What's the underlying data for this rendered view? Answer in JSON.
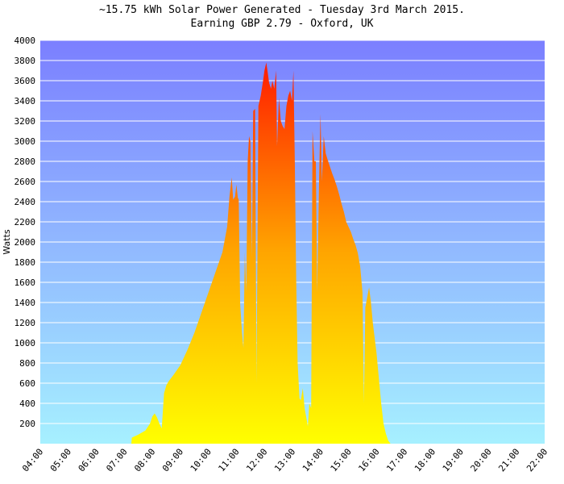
{
  "title": {
    "line1": "~15.75 kWh Solar Power Generated - Tuesday 3rd March 2015.",
    "line2": "Earning GBP 2.79 - Oxford, UK"
  },
  "chart_data": {
    "type": "area",
    "title": "~15.75 kWh Solar Power Generated - Tuesday 3rd March 2015.",
    "subtitle": "Earning GBP 2.79 - Oxford, UK",
    "xlabel": "",
    "ylabel": "Watts",
    "ylim": [
      0,
      4000
    ],
    "xlim": [
      "04:00",
      "22:00"
    ],
    "yticks": [
      200,
      400,
      600,
      800,
      1000,
      1200,
      1400,
      1600,
      1800,
      2000,
      2200,
      2400,
      2600,
      2800,
      3000,
      3200,
      3400,
      3600,
      3800,
      4000
    ],
    "xticks": [
      "04:00",
      "05:00",
      "06:00",
      "07:00",
      "08:00",
      "09:00",
      "10:00",
      "11:00",
      "12:00",
      "13:00",
      "14:00",
      "15:00",
      "16:00",
      "17:00",
      "18:00",
      "19:00",
      "20:00",
      "21:00",
      "22:00"
    ],
    "grid": true,
    "colors": {
      "plot_bg_top": "#7b7fff",
      "plot_bg_bottom": "#a6f0ff",
      "area_low": "#ffff00",
      "area_mid": "#ffa500",
      "area_high": "#ff1a00",
      "gridline": "#ffffff"
    },
    "points": [
      [
        "07:15",
        0
      ],
      [
        "07:16",
        60
      ],
      [
        "07:30",
        90
      ],
      [
        "07:45",
        130
      ],
      [
        "07:55",
        200
      ],
      [
        "08:00",
        270
      ],
      [
        "08:05",
        300
      ],
      [
        "08:10",
        260
      ],
      [
        "08:15",
        200
      ],
      [
        "08:20",
        150
      ],
      [
        "08:25",
        500
      ],
      [
        "08:30",
        580
      ],
      [
        "08:35",
        620
      ],
      [
        "08:45",
        680
      ],
      [
        "09:00",
        780
      ],
      [
        "09:15",
        930
      ],
      [
        "09:30",
        1100
      ],
      [
        "09:45",
        1300
      ],
      [
        "10:00",
        1500
      ],
      [
        "10:15",
        1700
      ],
      [
        "10:30",
        1900
      ],
      [
        "10:40",
        2150
      ],
      [
        "10:45",
        2450
      ],
      [
        "10:50",
        2640
      ],
      [
        "10:53",
        2420
      ],
      [
        "10:57",
        2450
      ],
      [
        "11:00",
        2570
      ],
      [
        "11:03",
        2440
      ],
      [
        "11:05",
        2420
      ],
      [
        "11:08",
        1380
      ],
      [
        "11:12",
        1100
      ],
      [
        "11:15",
        950
      ],
      [
        "11:18",
        1900
      ],
      [
        "11:21",
        1500
      ],
      [
        "11:24",
        2800
      ],
      [
        "11:27",
        3050
      ],
      [
        "11:30",
        3000
      ],
      [
        "11:33",
        1850
      ],
      [
        "11:36",
        3300
      ],
      [
        "11:40",
        3320
      ],
      [
        "11:43",
        600
      ],
      [
        "11:47",
        3350
      ],
      [
        "11:52",
        3450
      ],
      [
        "11:57",
        3600
      ],
      [
        "12:00",
        3700
      ],
      [
        "12:04",
        3780
      ],
      [
        "12:07",
        3680
      ],
      [
        "12:10",
        3580
      ],
      [
        "12:14",
        3520
      ],
      [
        "12:17",
        3600
      ],
      [
        "12:21",
        3520
      ],
      [
        "12:25",
        3700
      ],
      [
        "12:27",
        2950
      ],
      [
        "12:31",
        3430
      ],
      [
        "12:35",
        3200
      ],
      [
        "12:39",
        3150
      ],
      [
        "12:43",
        3120
      ],
      [
        "12:47",
        3350
      ],
      [
        "12:51",
        3450
      ],
      [
        "12:55",
        3500
      ],
      [
        "12:59",
        3400
      ],
      [
        "13:02",
        3700
      ],
      [
        "13:05",
        2800
      ],
      [
        "13:08",
        1650
      ],
      [
        "13:11",
        800
      ],
      [
        "13:15",
        450
      ],
      [
        "13:18",
        430
      ],
      [
        "13:22",
        550
      ],
      [
        "13:26",
        350
      ],
      [
        "13:30",
        250
      ],
      [
        "13:33",
        170
      ],
      [
        "13:36",
        400
      ],
      [
        "13:40",
        350
      ],
      [
        "13:43",
        3100
      ],
      [
        "13:47",
        2800
      ],
      [
        "13:50",
        2800
      ],
      [
        "13:53",
        1500
      ],
      [
        "13:57",
        2600
      ],
      [
        "14:00",
        3270
      ],
      [
        "14:03",
        2600
      ],
      [
        "14:07",
        3050
      ],
      [
        "14:11",
        2880
      ],
      [
        "14:15",
        2820
      ],
      [
        "14:20",
        2750
      ],
      [
        "14:25",
        2680
      ],
      [
        "14:30",
        2620
      ],
      [
        "14:35",
        2550
      ],
      [
        "14:40",
        2470
      ],
      [
        "14:45",
        2380
      ],
      [
        "14:50",
        2300
      ],
      [
        "14:55",
        2200
      ],
      [
        "15:00",
        2150
      ],
      [
        "15:05",
        2100
      ],
      [
        "15:10",
        2030
      ],
      [
        "15:15",
        1970
      ],
      [
        "15:20",
        1890
      ],
      [
        "15:25",
        1760
      ],
      [
        "15:30",
        1500
      ],
      [
        "15:33",
        400
      ],
      [
        "15:36",
        1350
      ],
      [
        "15:40",
        1450
      ],
      [
        "15:44",
        1550
      ],
      [
        "15:48",
        1400
      ],
      [
        "15:52",
        1200
      ],
      [
        "15:56",
        1050
      ],
      [
        "16:00",
        900
      ],
      [
        "16:05",
        650
      ],
      [
        "16:10",
        400
      ],
      [
        "16:15",
        200
      ],
      [
        "16:20",
        100
      ],
      [
        "16:25",
        30
      ],
      [
        "16:30",
        0
      ]
    ]
  }
}
